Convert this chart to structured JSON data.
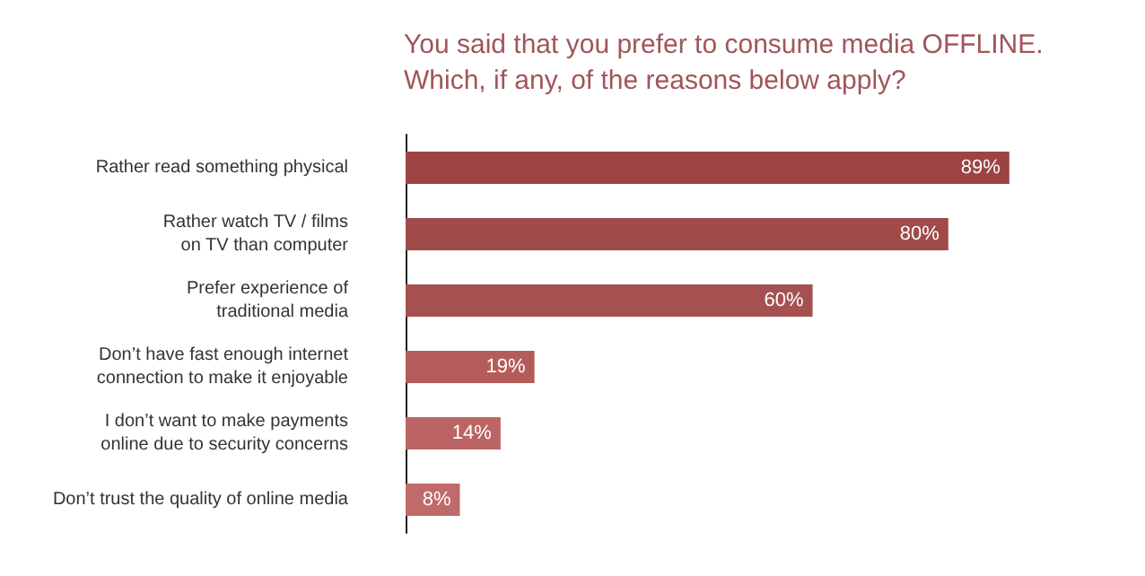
{
  "chart_data": {
    "type": "bar",
    "orientation": "horizontal",
    "title": "You said that you prefer to consume media OFFLINE. Which, if any, of the reasons below apply?",
    "categories": [
      "Rather read something physical",
      "Rather watch TV / films\non TV than computer",
      "Prefer experience of\ntraditional media",
      "Don’t have fast enough internet\nconnection to make it enjoyable",
      "I don’t want to make payments\nonline due to security concerns",
      "Don’t trust the quality of online media"
    ],
    "values": [
      89,
      80,
      60,
      19,
      14,
      8
    ],
    "value_labels": [
      "89%",
      "80%",
      "60%",
      "19%",
      "14%",
      "8%"
    ],
    "colors": [
      "#9c4444",
      "#a04a4a",
      "#a65151",
      "#b45c5c",
      "#bc6363",
      "#c06a6a"
    ],
    "tick_labels": "y"
  }
}
